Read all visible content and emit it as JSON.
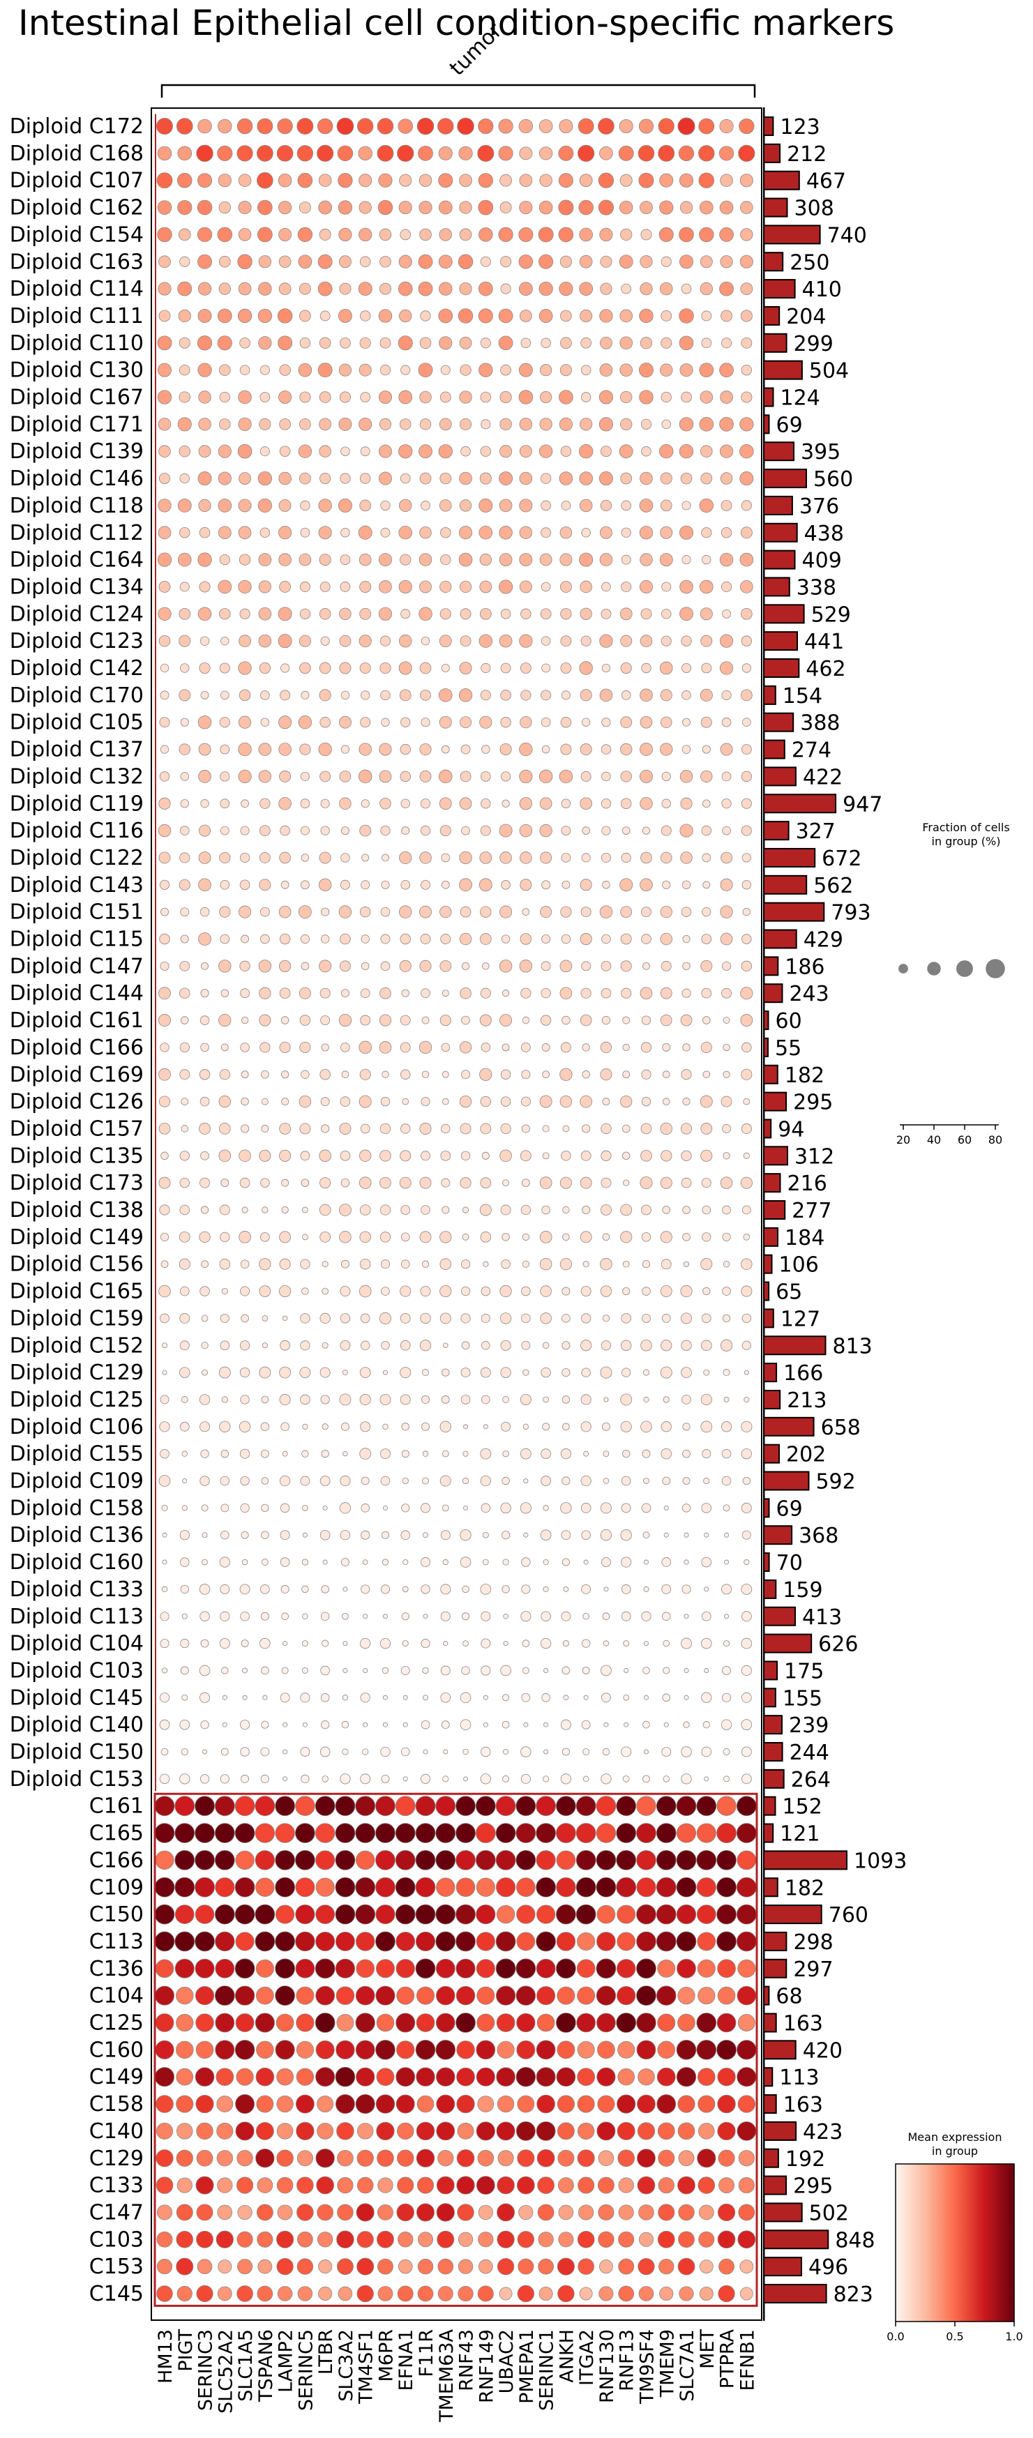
{
  "chart_data": {
    "type": "dotplot",
    "title": "Intestinal Epithelial cell condition-specific markers",
    "group_bracket_label": "tumor",
    "genes": [
      "HM13",
      "PIGT",
      "SERINC3",
      "SLC52A2",
      "SLC1A5",
      "TSPAN6",
      "LAMP2",
      "SERINC5",
      "LTBR",
      "SLC3A2",
      "TM4SF1",
      "M6PR",
      "EFNA1",
      "F11R",
      "TMEM63A",
      "RNF43",
      "RNF149",
      "UBAC2",
      "PMEPA1",
      "SERINC1",
      "ANKH",
      "ITGA2",
      "RNF130",
      "RNF13",
      "TM9SF4",
      "TMEM9",
      "SLC7A1",
      "MET",
      "PTPRA",
      "EFNB1"
    ],
    "rows": [
      {
        "label": "Diploid C172",
        "count": 123,
        "level": 0.45
      },
      {
        "label": "Diploid C168",
        "count": 212,
        "level": 0.42
      },
      {
        "label": "Diploid C107",
        "count": 467,
        "level": 0.38
      },
      {
        "label": "Diploid C162",
        "count": 308,
        "level": 0.33
      },
      {
        "label": "Diploid C154",
        "count": 740,
        "level": 0.3
      },
      {
        "label": "Diploid C163",
        "count": 250,
        "level": 0.28
      },
      {
        "label": "Diploid C114",
        "count": 410,
        "level": 0.27
      },
      {
        "label": "Diploid C111",
        "count": 204,
        "level": 0.27
      },
      {
        "label": "Diploid C110",
        "count": 299,
        "level": 0.26
      },
      {
        "label": "Diploid C130",
        "count": 504,
        "level": 0.25
      },
      {
        "label": "Diploid C167",
        "count": 124,
        "level": 0.25
      },
      {
        "label": "Diploid C171",
        "count": 69,
        "level": 0.23
      },
      {
        "label": "Diploid C139",
        "count": 395,
        "level": 0.23
      },
      {
        "label": "Diploid C146",
        "count": 560,
        "level": 0.24
      },
      {
        "label": "Diploid C118",
        "count": 376,
        "level": 0.22
      },
      {
        "label": "Diploid C112",
        "count": 438,
        "level": 0.22
      },
      {
        "label": "Diploid C164",
        "count": 409,
        "level": 0.22
      },
      {
        "label": "Diploid C134",
        "count": 338,
        "level": 0.21
      },
      {
        "label": "Diploid C124",
        "count": 529,
        "level": 0.2
      },
      {
        "label": "Diploid C123",
        "count": 441,
        "level": 0.2
      },
      {
        "label": "Diploid C142",
        "count": 462,
        "level": 0.19
      },
      {
        "label": "Diploid C170",
        "count": 154,
        "level": 0.19
      },
      {
        "label": "Diploid C105",
        "count": 388,
        "level": 0.18
      },
      {
        "label": "Diploid C137",
        "count": 274,
        "level": 0.18
      },
      {
        "label": "Diploid C132",
        "count": 422,
        "level": 0.18
      },
      {
        "label": "Diploid C119",
        "count": 947,
        "level": 0.17
      },
      {
        "label": "Diploid C116",
        "count": 327,
        "level": 0.17
      },
      {
        "label": "Diploid C122",
        "count": 672,
        "level": 0.16
      },
      {
        "label": "Diploid C143",
        "count": 562,
        "level": 0.16
      },
      {
        "label": "Diploid C151",
        "count": 793,
        "level": 0.15
      },
      {
        "label": "Diploid C115",
        "count": 429,
        "level": 0.15
      },
      {
        "label": "Diploid C147",
        "count": 186,
        "level": 0.15
      },
      {
        "label": "Diploid C144",
        "count": 243,
        "level": 0.14
      },
      {
        "label": "Diploid C161",
        "count": 60,
        "level": 0.14
      },
      {
        "label": "Diploid C166",
        "count": 55,
        "level": 0.14
      },
      {
        "label": "Diploid C169",
        "count": 182,
        "level": 0.13
      },
      {
        "label": "Diploid C126",
        "count": 295,
        "level": 0.13
      },
      {
        "label": "Diploid C157",
        "count": 94,
        "level": 0.12
      },
      {
        "label": "Diploid C135",
        "count": 312,
        "level": 0.12
      },
      {
        "label": "Diploid C173",
        "count": 216,
        "level": 0.12
      },
      {
        "label": "Diploid C138",
        "count": 277,
        "level": 0.11
      },
      {
        "label": "Diploid C149",
        "count": 184,
        "level": 0.11
      },
      {
        "label": "Diploid C156",
        "count": 106,
        "level": 0.1
      },
      {
        "label": "Diploid C165",
        "count": 65,
        "level": 0.1
      },
      {
        "label": "Diploid C159",
        "count": 127,
        "level": 0.09
      },
      {
        "label": "Diploid C152",
        "count": 813,
        "level": 0.09
      },
      {
        "label": "Diploid C129",
        "count": 166,
        "level": 0.08
      },
      {
        "label": "Diploid C125",
        "count": 213,
        "level": 0.08
      },
      {
        "label": "Diploid C106",
        "count": 658,
        "level": 0.07
      },
      {
        "label": "Diploid C155",
        "count": 202,
        "level": 0.07
      },
      {
        "label": "Diploid C109",
        "count": 592,
        "level": 0.07
      },
      {
        "label": "Diploid C158",
        "count": 69,
        "level": 0.06
      },
      {
        "label": "Diploid C136",
        "count": 368,
        "level": 0.06
      },
      {
        "label": "Diploid C160",
        "count": 70,
        "level": 0.05
      },
      {
        "label": "Diploid C133",
        "count": 159,
        "level": 0.05
      },
      {
        "label": "Diploid C113",
        "count": 413,
        "level": 0.04
      },
      {
        "label": "Diploid C104",
        "count": 626,
        "level": 0.04
      },
      {
        "label": "Diploid C103",
        "count": 175,
        "level": 0.03
      },
      {
        "label": "Diploid C145",
        "count": 155,
        "level": 0.03
      },
      {
        "label": "Diploid C140",
        "count": 239,
        "level": 0.03
      },
      {
        "label": "Diploid C150",
        "count": 244,
        "level": 0.02
      },
      {
        "label": "Diploid C153",
        "count": 264,
        "level": 0.02
      },
      {
        "label": "C161",
        "count": 152,
        "level": 0.92
      },
      {
        "label": "C165",
        "count": 121,
        "level": 0.9
      },
      {
        "label": "C166",
        "count": 1093,
        "level": 0.85
      },
      {
        "label": "C109",
        "count": 182,
        "level": 0.85
      },
      {
        "label": "C150",
        "count": 760,
        "level": 0.8
      },
      {
        "label": "C113",
        "count": 298,
        "level": 0.78
      },
      {
        "label": "C136",
        "count": 297,
        "level": 0.76
      },
      {
        "label": "C104",
        "count": 68,
        "level": 0.74
      },
      {
        "label": "C125",
        "count": 163,
        "level": 0.72
      },
      {
        "label": "C160",
        "count": 420,
        "level": 0.72
      },
      {
        "label": "C149",
        "count": 113,
        "level": 0.68
      },
      {
        "label": "C158",
        "count": 163,
        "level": 0.66
      },
      {
        "label": "C140",
        "count": 423,
        "level": 0.64
      },
      {
        "label": "C129",
        "count": 192,
        "level": 0.6
      },
      {
        "label": "C133",
        "count": 295,
        "level": 0.56
      },
      {
        "label": "C147",
        "count": 502,
        "level": 0.53
      },
      {
        "label": "C103",
        "count": 848,
        "level": 0.5
      },
      {
        "label": "C153",
        "count": 496,
        "level": 0.46
      },
      {
        "label": "C145",
        "count": 823,
        "level": 0.42
      }
    ],
    "bar_color": "#b22222",
    "size_legend": {
      "title": "Fraction of cells\nin group (%)",
      "values": [
        20,
        40,
        60,
        80
      ]
    },
    "color_legend": {
      "title": "Mean expression\nin group",
      "colormap": "Reds",
      "ticks": [
        "0.0",
        "0.5",
        "1.0"
      ],
      "range": [
        0,
        1
      ]
    },
    "group_box_color": "#b22222"
  }
}
